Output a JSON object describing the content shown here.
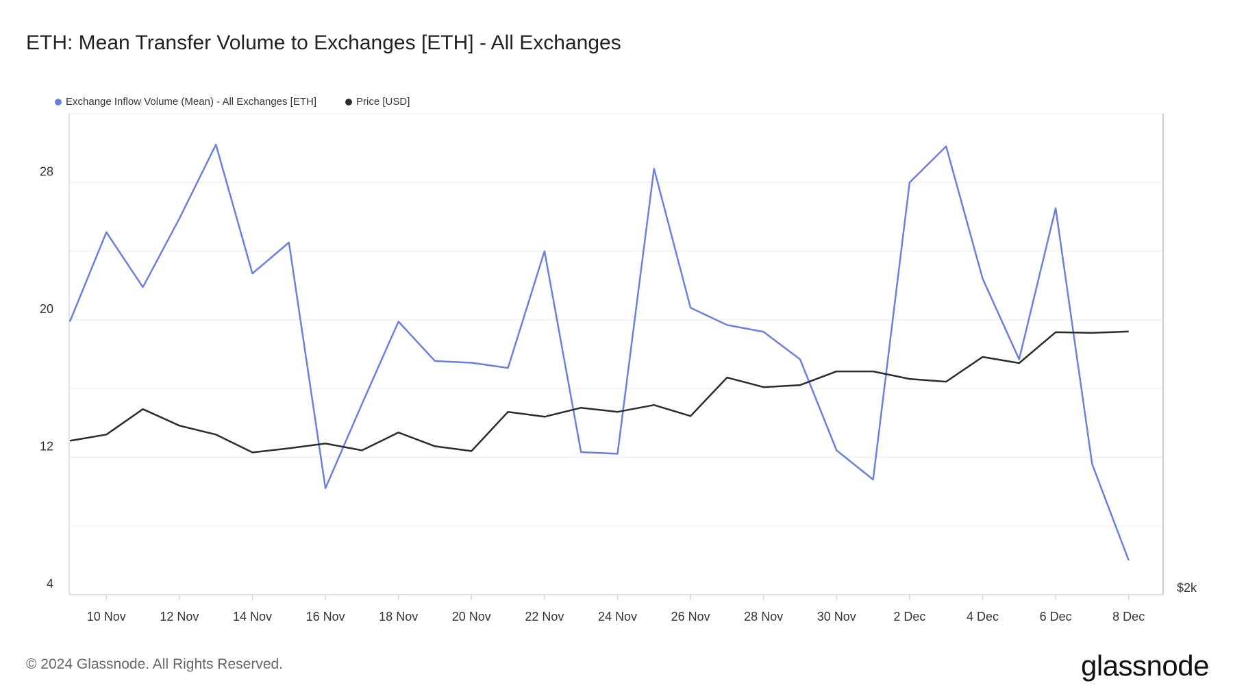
{
  "title": "ETH: Mean Transfer Volume to Exchanges [ETH] - All Exchanges",
  "footer": "© 2024 Glassnode. All Rights Reserved.",
  "brand": "glassnode",
  "colors": {
    "inflow": "#6b7fe0",
    "price": "#2b2b2b",
    "grid": "#ececec",
    "axis": "#cfd5ea"
  },
  "chart_data": {
    "type": "line",
    "title": "ETH: Mean Transfer Volume to Exchanges [ETH] - All Exchanges",
    "x": [
      "9 Nov",
      "10 Nov",
      "11 Nov",
      "12 Nov",
      "13 Nov",
      "14 Nov",
      "15 Nov",
      "16 Nov",
      "17 Nov",
      "18 Nov",
      "19 Nov",
      "20 Nov",
      "21 Nov",
      "22 Nov",
      "23 Nov",
      "24 Nov",
      "25 Nov",
      "26 Nov",
      "27 Nov",
      "28 Nov",
      "29 Nov",
      "30 Nov",
      "1 Dec",
      "2 Dec",
      "3 Dec",
      "4 Dec",
      "5 Dec",
      "6 Dec",
      "7 Dec",
      "8 Dec"
    ],
    "x_ticks": [
      "10 Nov",
      "12 Nov",
      "14 Nov",
      "16 Nov",
      "18 Nov",
      "20 Nov",
      "22 Nov",
      "24 Nov",
      "26 Nov",
      "28 Nov",
      "30 Nov",
      "2 Dec",
      "4 Dec",
      "6 Dec",
      "8 Dec"
    ],
    "y_left": {
      "ticks": [
        "4",
        "12",
        "20",
        "28"
      ],
      "lim": [
        4,
        32
      ]
    },
    "y_right": {
      "ticks": [
        "$2k"
      ]
    },
    "grid": true,
    "legend_position": "top-left",
    "series": [
      {
        "name": "Exchange Inflow Volume (Mean) - All Exchanges [ETH]",
        "axis": "left",
        "color": "#6b7fe0",
        "values": [
          19.9,
          25.1,
          21.9,
          25.9,
          30.2,
          22.7,
          24.5,
          10.2,
          15.1,
          19.9,
          17.6,
          17.5,
          17.2,
          24.0,
          12.3,
          12.2,
          28.8,
          20.7,
          19.7,
          19.3,
          17.7,
          12.4,
          10.7,
          28.0,
          30.1,
          22.4,
          17.7,
          26.5,
          11.6,
          6.0
        ]
      },
      {
        "name": "Price [USD]",
        "axis": "right",
        "color": "#2b2b2b",
        "values": [
          3120,
          3165,
          3350,
          3230,
          3165,
          3035,
          3065,
          3100,
          3050,
          3180,
          3080,
          3045,
          3330,
          3295,
          3360,
          3330,
          3380,
          3300,
          3580,
          3510,
          3525,
          3625,
          3625,
          3570,
          3550,
          3730,
          3685,
          3910,
          3905,
          3915
        ],
        "ylim": [
          2000,
          5500
        ]
      }
    ]
  }
}
